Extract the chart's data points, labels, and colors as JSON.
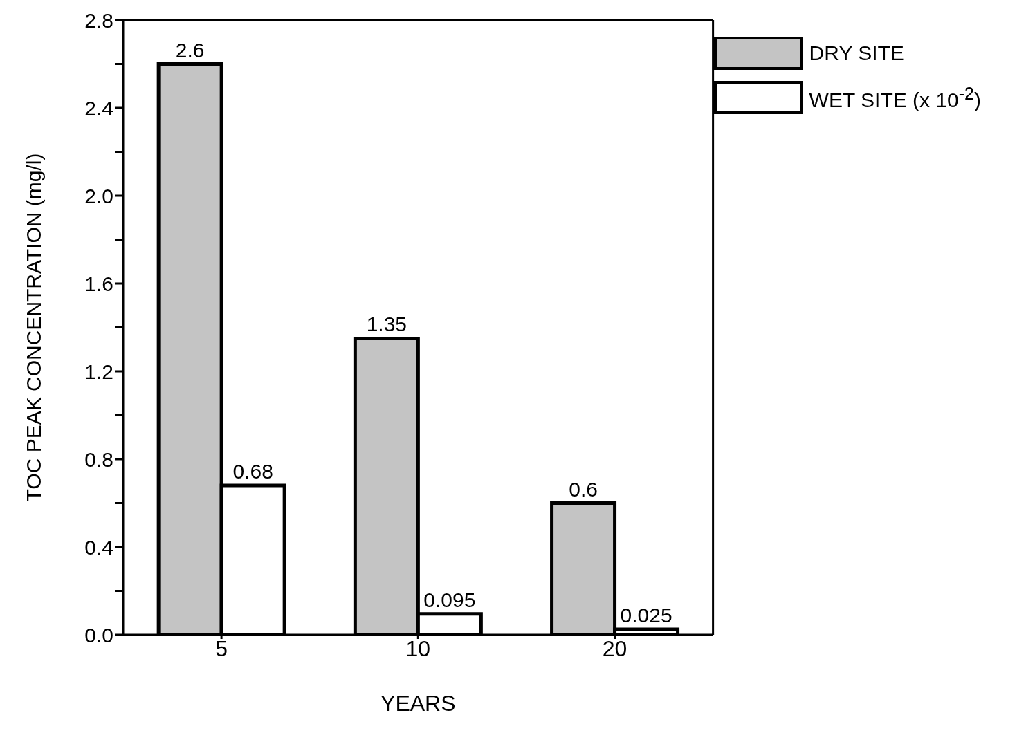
{
  "chart_data": {
    "type": "bar",
    "xlabel": "YEARS",
    "ylabel": "TOC PEAK CONCENTRATION (mg/l)",
    "categories": [
      "5",
      "10",
      "20"
    ],
    "series": [
      {
        "name": "DRY SITE",
        "color": "#c4c4c4",
        "values": [
          2.6,
          1.35,
          0.6
        ]
      },
      {
        "name": "WET SITE (x 10$^{-2}$)",
        "color": "#ffffff",
        "values": [
          0.68,
          0.095,
          0.025
        ]
      }
    ],
    "ylim": [
      0,
      2.8
    ],
    "yticks": [
      {
        "value": 0,
        "label": "0.0"
      },
      {
        "value": 0.2,
        "label": null
      },
      0.4,
      {
        "value": 0.6,
        "label": null
      },
      0.8,
      {
        "value": 1.0,
        "label": null
      },
      1.2,
      {
        "value": 1.4,
        "label": null
      },
      1.6,
      {
        "value": 1.8,
        "label": null
      },
      {
        "value": 2,
        "label": "2.0"
      },
      {
        "value": 2.2,
        "label": null
      },
      2.4,
      {
        "value": 2.6,
        "label": null
      },
      2.8
    ],
    "data_labels": true,
    "legend": "top right",
    "grid": false
  }
}
